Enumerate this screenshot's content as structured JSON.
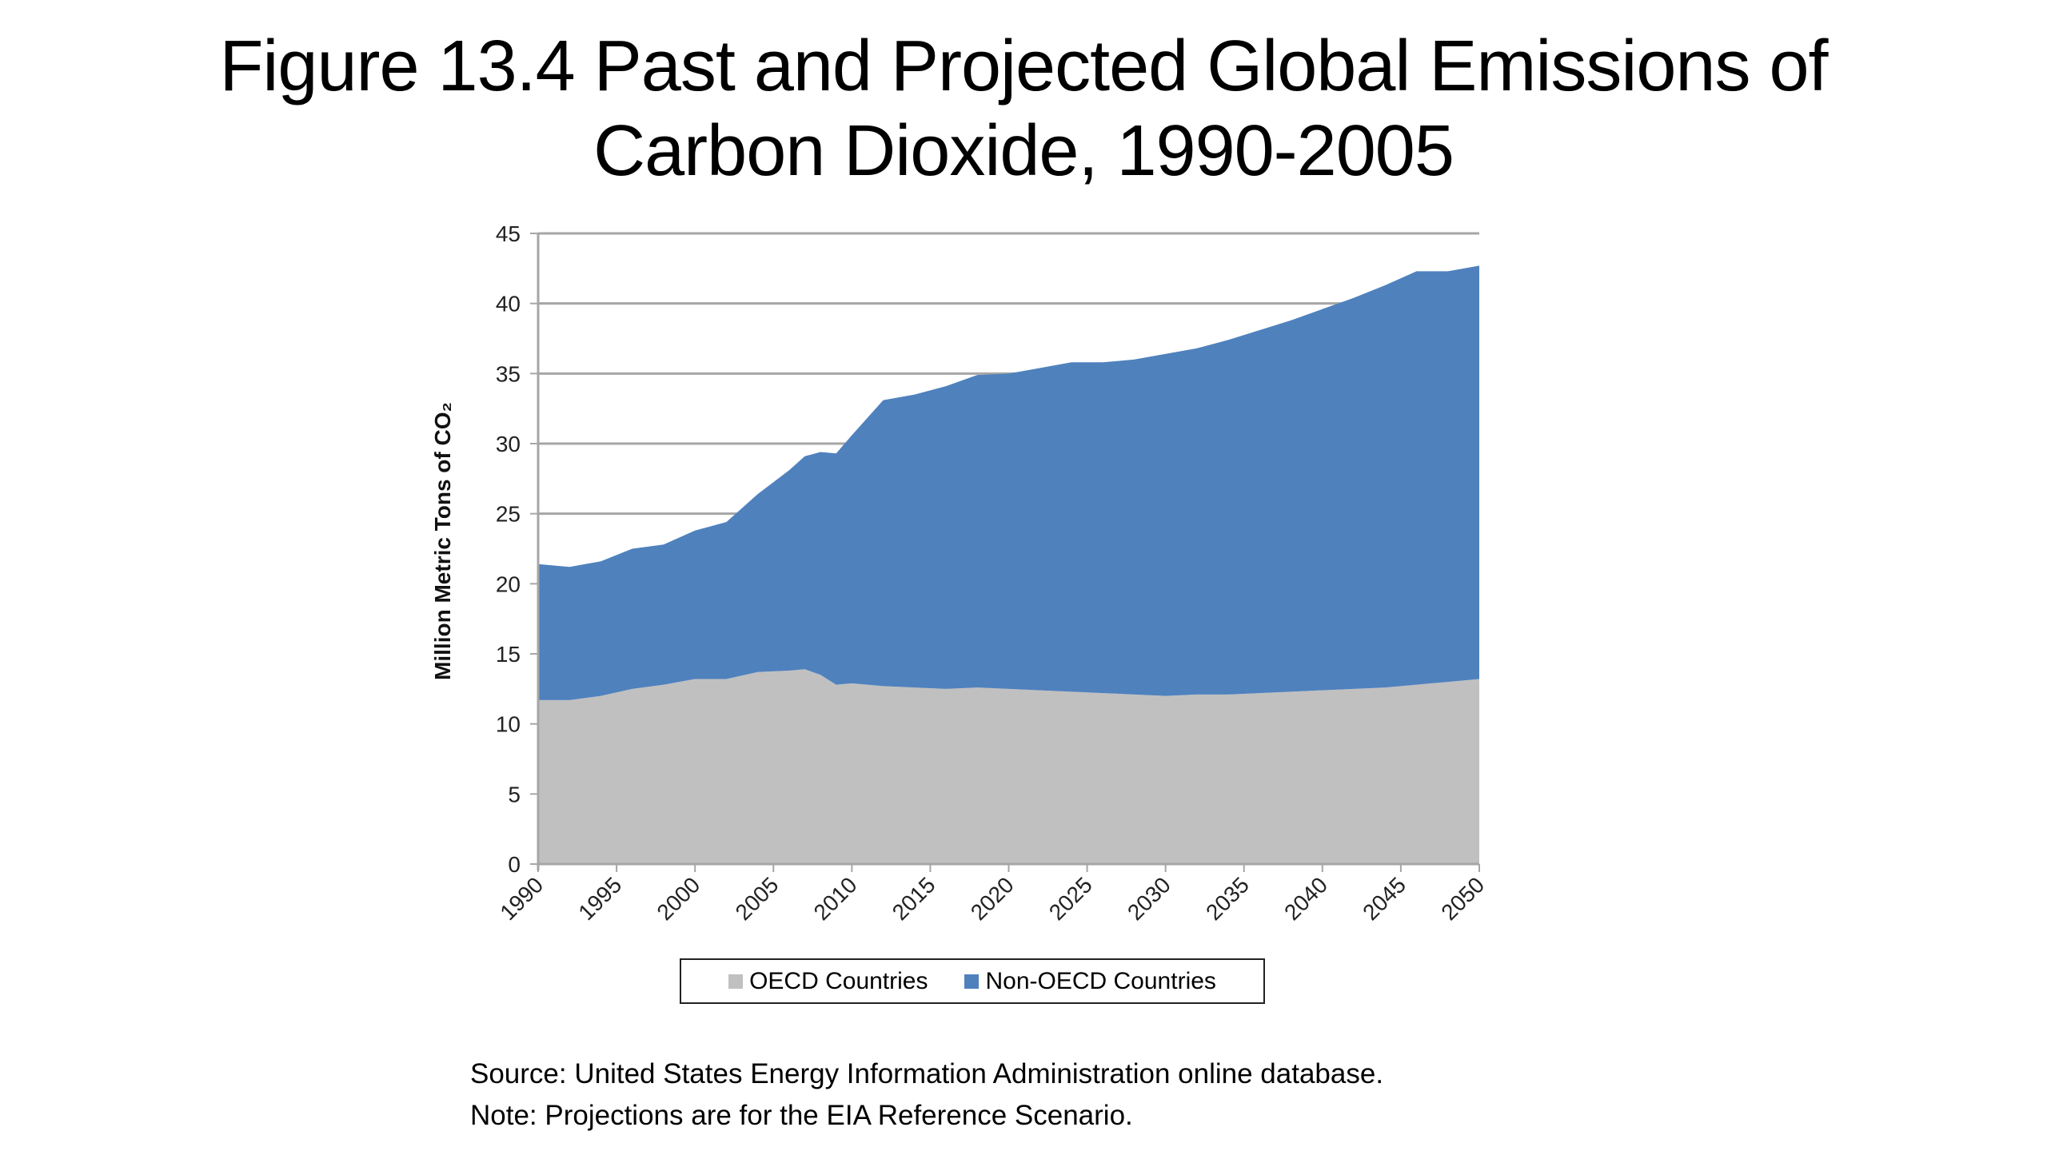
{
  "title_lines": [
    "Figure 13.4 Past and Projected Global Emissions of",
    "Carbon Dioxide, 1990-2005"
  ],
  "chart_data": {
    "type": "area",
    "stacked": true,
    "title": "Figure 13.4 Past and Projected Global Emissions of Carbon Dioxide, 1990-2005",
    "xlabel": "",
    "ylabel": "Million Metric Tons of CO₂",
    "ylim": [
      0,
      45
    ],
    "xlim": [
      1990,
      2050
    ],
    "yticks": [
      0,
      5,
      10,
      15,
      20,
      25,
      30,
      35,
      40,
      45
    ],
    "xticks": [
      "1990",
      "1995",
      "2000",
      "2005",
      "2010",
      "2015",
      "2020",
      "2025",
      "2030",
      "2035",
      "2040",
      "2045",
      "2050"
    ],
    "grid": true,
    "legend_position": "bottom",
    "x": [
      1990,
      1992,
      1994,
      1996,
      1998,
      2000,
      2002,
      2004,
      2006,
      2007,
      2008,
      2009,
      2010,
      2012,
      2014,
      2016,
      2018,
      2020,
      2022,
      2024,
      2026,
      2028,
      2030,
      2032,
      2034,
      2036,
      2038,
      2040,
      2042,
      2044,
      2046,
      2048,
      2050
    ],
    "series": [
      {
        "name": "OECD Countries",
        "color": "#c0c0c0",
        "values": [
          11.7,
          11.7,
          12.0,
          12.5,
          12.8,
          13.2,
          13.2,
          13.7,
          13.8,
          13.9,
          13.5,
          12.8,
          12.9,
          12.7,
          12.6,
          12.5,
          12.6,
          12.5,
          12.4,
          12.3,
          12.2,
          12.1,
          12.0,
          12.1,
          12.1,
          12.2,
          12.3,
          12.4,
          12.5,
          12.6,
          12.8,
          13.0,
          13.2
        ]
      },
      {
        "name": "Non-OECD Countries",
        "color": "#4f81bd",
        "values": [
          9.7,
          9.5,
          9.6,
          10.0,
          10.0,
          10.6,
          11.2,
          12.7,
          14.3,
          15.2,
          15.9,
          16.5,
          17.7,
          20.4,
          20.9,
          21.6,
          22.3,
          22.5,
          23.0,
          23.5,
          23.6,
          23.9,
          24.4,
          24.7,
          25.3,
          25.9,
          26.5,
          27.2,
          27.9,
          28.7,
          29.5,
          29.3,
          29.5
        ]
      }
    ]
  },
  "legend": {
    "items": [
      {
        "label": "OECD Countries",
        "color": "#c0c0c0"
      },
      {
        "label": "Non-OECD Countries",
        "color": "#4f81bd"
      }
    ]
  },
  "footer": {
    "source": "Source: United States Energy Information Administration online database.",
    "note": "Note: Projections are for the EIA Reference Scenario."
  }
}
